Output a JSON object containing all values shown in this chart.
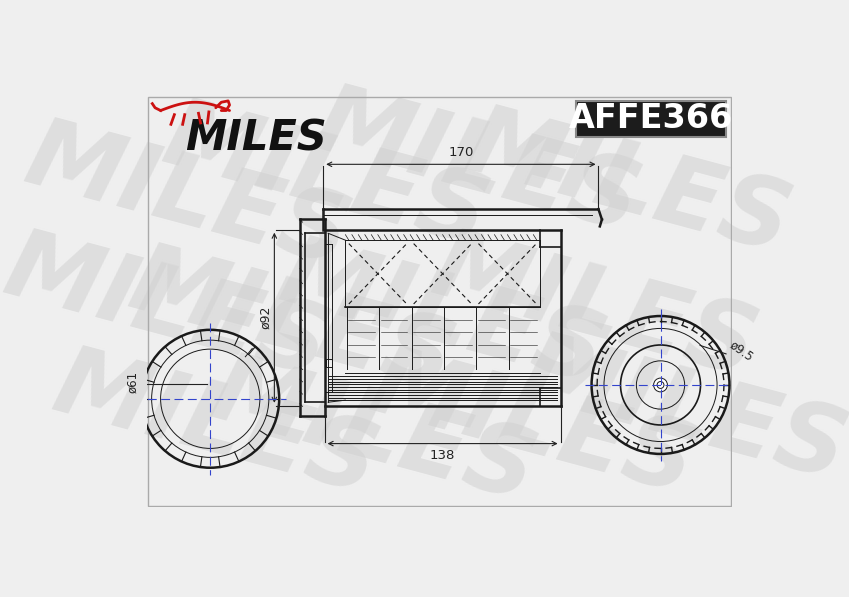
{
  "background_color": "#efefef",
  "watermark_text": "MILES",
  "watermark_color": "#d0d0d0",
  "part_number": "AFFE366",
  "part_number_bg": "#1c1c1c",
  "part_number_color": "#ffffff",
  "brand_name": "MILES",
  "brand_color": "#111111",
  "logo_color": "#cc1111",
  "dim_170": "170",
  "dim_92": "ø92",
  "dim_138": "138",
  "dim_61": "ø61",
  "dim_9_5": "ø9.5",
  "line_color": "#1a1a1a",
  "dim_line_color": "#222222",
  "thin_color": "#444444"
}
